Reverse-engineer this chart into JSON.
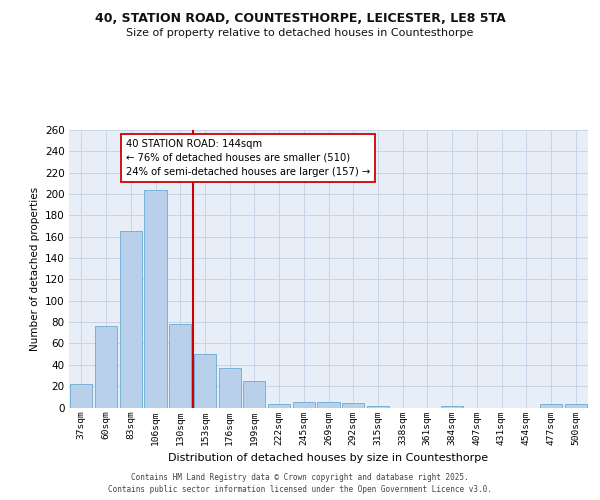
{
  "title_line1": "40, STATION ROAD, COUNTESTHORPE, LEICESTER, LE8 5TA",
  "title_line2": "Size of property relative to detached houses in Countesthorpe",
  "xlabel": "Distribution of detached houses by size in Countesthorpe",
  "ylabel": "Number of detached properties",
  "categories": [
    "37sqm",
    "60sqm",
    "83sqm",
    "106sqm",
    "130sqm",
    "153sqm",
    "176sqm",
    "199sqm",
    "222sqm",
    "245sqm",
    "269sqm",
    "292sqm",
    "315sqm",
    "338sqm",
    "361sqm",
    "384sqm",
    "407sqm",
    "431sqm",
    "454sqm",
    "477sqm",
    "500sqm"
  ],
  "values": [
    22,
    76,
    165,
    204,
    78,
    50,
    37,
    25,
    3,
    5,
    5,
    4,
    1,
    0,
    0,
    1,
    0,
    0,
    0,
    3,
    3
  ],
  "bar_color": "#b8d0ea",
  "bar_edge_color": "#6aaad4",
  "grid_color": "#c8d4e8",
  "bg_color": "#e8eef8",
  "vline_x": 4.5,
  "vline_color": "#cc0000",
  "annotation_text": "40 STATION ROAD: 144sqm\n← 76% of detached houses are smaller (510)\n24% of semi-detached houses are larger (157) →",
  "annotation_box_color": "#ffffff",
  "annotation_box_edge": "#cc0000",
  "ylim": [
    0,
    260
  ],
  "yticks": [
    0,
    20,
    40,
    60,
    80,
    100,
    120,
    140,
    160,
    180,
    200,
    220,
    240,
    260
  ],
  "footer_line1": "Contains HM Land Registry data © Crown copyright and database right 2025.",
  "footer_line2": "Contains public sector information licensed under the Open Government Licence v3.0."
}
